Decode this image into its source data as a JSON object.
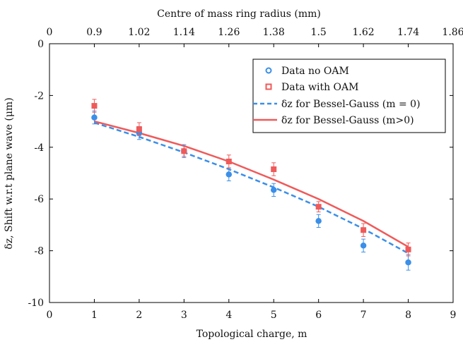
{
  "chart_data": {
    "type": "scatter",
    "xlabel": "Topological charge, m",
    "ylabel": "δz, Shift w.r.t plane wave (μm)",
    "top_xlabel": "Centre of mass ring radius (mm)",
    "xlim": [
      0,
      9
    ],
    "ylim": [
      -10,
      0
    ],
    "x_ticks": [
      0,
      1,
      2,
      3,
      4,
      5,
      6,
      7,
      8,
      9
    ],
    "x_tick_labels": [
      "0",
      "1",
      "2",
      "3",
      "4",
      "5",
      "6",
      "7",
      "8",
      "9"
    ],
    "y_ticks": [
      0,
      -2,
      -4,
      -6,
      -8,
      -10
    ],
    "y_tick_labels": [
      "0",
      "-2",
      "-4",
      "-6",
      "-8",
      "-10"
    ],
    "top_ticks": [
      0,
      1,
      2,
      3,
      4,
      5,
      6,
      7,
      8,
      9
    ],
    "top_tick_labels": [
      "0",
      "0.9",
      "1.02",
      "1.14",
      "1.26",
      "1.38",
      "1.5",
      "1.62",
      "1.74",
      "1.86"
    ],
    "grid": false,
    "legend_position": "top-right",
    "series": [
      {
        "name": "Data no OAM",
        "kind": "points",
        "marker": "circle",
        "color": "#3b8fe8",
        "x": [
          1,
          2,
          3,
          4,
          5,
          6,
          7,
          8
        ],
        "y": [
          -2.85,
          -3.45,
          -4.15,
          -5.05,
          -5.65,
          -6.85,
          -7.8,
          -8.45
        ],
        "err": [
          0.25,
          0.25,
          0.25,
          0.25,
          0.25,
          0.25,
          0.25,
          0.3
        ]
      },
      {
        "name": "Data with OAM",
        "kind": "points",
        "marker": "square",
        "color": "#ef5a5a",
        "x": [
          1,
          2,
          3,
          4,
          5,
          6,
          7,
          8
        ],
        "y": [
          -2.4,
          -3.3,
          -4.15,
          -4.55,
          -4.85,
          -6.3,
          -7.2,
          -7.95
        ],
        "err": [
          0.25,
          0.25,
          0.2,
          0.25,
          0.25,
          0.2,
          0.25,
          0.25
        ]
      },
      {
        "name": "δz for Bessel-Gauss (m = 0)",
        "kind": "line",
        "dash": true,
        "color": "#3b8fe8",
        "x": [
          1,
          2,
          3,
          4,
          5,
          6,
          7,
          8
        ],
        "y": [
          -3.05,
          -3.6,
          -4.2,
          -4.85,
          -5.55,
          -6.3,
          -7.15,
          -8.1
        ]
      },
      {
        "name": "δz for Bessel-Gauss (m>0)",
        "kind": "line",
        "dash": false,
        "color": "#ef5a5a",
        "x": [
          1,
          2,
          3,
          4,
          5,
          6,
          7,
          8
        ],
        "y": [
          -3.0,
          -3.45,
          -3.95,
          -4.55,
          -5.25,
          -6.0,
          -6.85,
          -7.85
        ]
      }
    ]
  }
}
